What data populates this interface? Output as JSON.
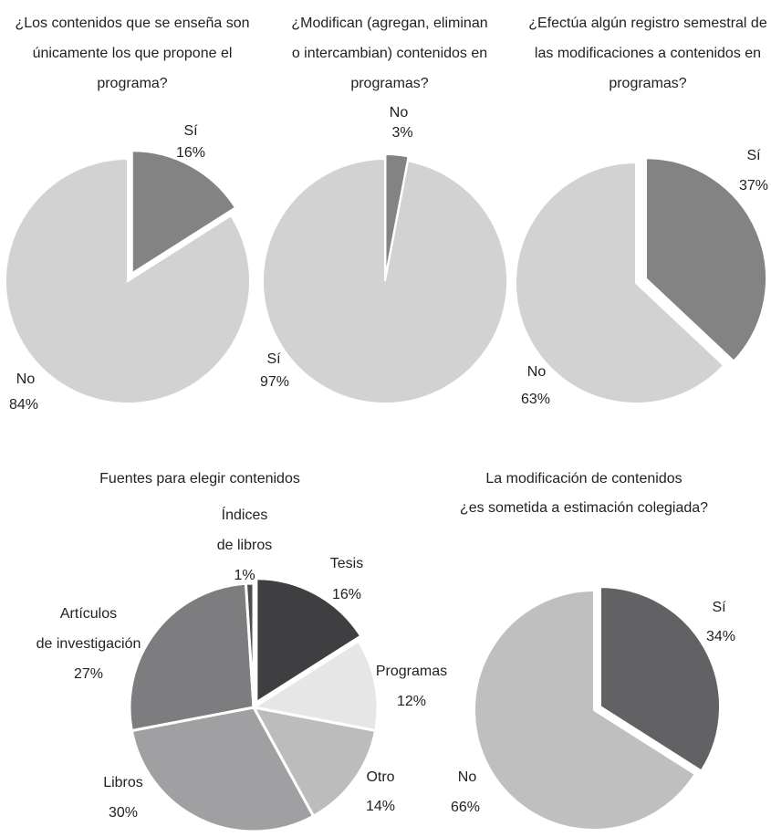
{
  "chart_data": [
    {
      "type": "pie",
      "title_lines": [
        "¿Los contenidos que se enseña son",
        "únicamente los que propone el",
        "programa?"
      ],
      "slices": [
        {
          "label": "Sí",
          "value": 16,
          "value_label": "16%",
          "color": "#838383"
        },
        {
          "label": "No",
          "value": 84,
          "value_label": "84%",
          "color": "#d2d2d2"
        }
      ]
    },
    {
      "type": "pie",
      "title_lines": [
        "¿Modifican (agregan, eliminan",
        "o intercambian) contenidos en",
        "programas?"
      ],
      "slices": [
        {
          "label": "No",
          "value": 3,
          "value_label": "3%",
          "color": "#838383"
        },
        {
          "label": "Sí",
          "value": 97,
          "value_label": "97%",
          "color": "#d2d2d2"
        }
      ]
    },
    {
      "type": "pie",
      "title_lines": [
        "¿Efectúa algún registro semestral de",
        "las modificaciones a contenidos en",
        "programas?"
      ],
      "slices": [
        {
          "label": "Sí",
          "value": 37,
          "value_label": "37%",
          "color": "#838383"
        },
        {
          "label": "No",
          "value": 63,
          "value_label": "63%",
          "color": "#d2d2d2"
        }
      ]
    },
    {
      "type": "pie",
      "title_lines": [
        "Fuentes para elegir contenidos"
      ],
      "slices": [
        {
          "label_lines": [
            "Tesis"
          ],
          "value": 16,
          "value_label": "16%",
          "color": "#3f3f41"
        },
        {
          "label_lines": [
            "Programas"
          ],
          "value": 12,
          "value_label": "12%",
          "color": "#e6e6e6"
        },
        {
          "label_lines": [
            "Otro"
          ],
          "value": 14,
          "value_label": "14%",
          "color": "#bcbcbc"
        },
        {
          "label_lines": [
            "Libros"
          ],
          "value": 30,
          "value_label": "30%",
          "color": "#a0a0a2"
        },
        {
          "label_lines": [
            "Artículos",
            "de investigación"
          ],
          "value": 27,
          "value_label": "27%",
          "color": "#7d7d80"
        },
        {
          "label_lines": [
            "Índices",
            "de libros"
          ],
          "value": 1,
          "value_label": "1%",
          "color": "#4e4e50"
        }
      ]
    },
    {
      "type": "pie",
      "title_lines": [
        "La modificación de contenidos",
        "¿es sometida a estimación colegiada?"
      ],
      "slices": [
        {
          "label": "Sí",
          "value": 34,
          "value_label": "34%",
          "color": "#626264"
        },
        {
          "label": "No",
          "value": 66,
          "value_label": "66%",
          "color": "#bfbfbf"
        }
      ]
    }
  ]
}
